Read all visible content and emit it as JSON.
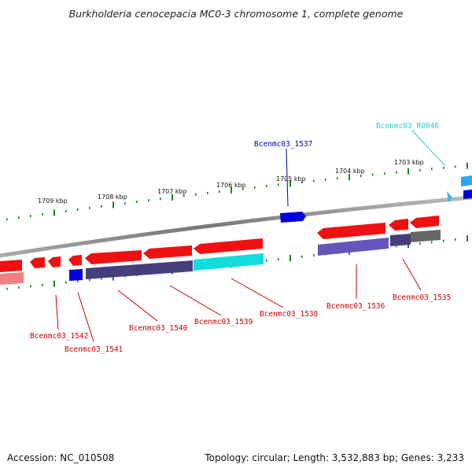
{
  "title": "Burkholderia cenocepacia MC0-3 chromosome 1, complete genome",
  "footer": {
    "accession": "Accession: NC_010508",
    "summary": "Topology: circular; Length: 3,532,883 bp; Genes: 3,233"
  },
  "colors": {
    "label_red": "#cc0000",
    "label_blue": "#0000aa",
    "label_cyan": "#33cccc",
    "gene_red": "#ee1111",
    "gene_blue": "#0000dd",
    "gene_cyan": "#11dddd",
    "gene_purple": "#6655bb",
    "gene_grey": "#666666",
    "tick_green": "#118811",
    "backbone": "#888888"
  },
  "scale_labels": [
    "1709 kbp",
    "1708 kbp",
    "1707 kbp",
    "1706 kbp",
    "1705 kbp",
    "1704 kbp",
    "1703 kbp"
  ],
  "gene_labels": [
    {
      "text": "Bcenmc03_R0046",
      "color": "cyan"
    },
    {
      "text": "Bcenmc03_1537",
      "color": "blue"
    },
    {
      "text": "Bcenmc03_1535",
      "color": "red"
    },
    {
      "text": "Bcenmc03_1536",
      "color": "red"
    },
    {
      "text": "Bcenmc03_1538",
      "color": "red"
    },
    {
      "text": "Bcenmc03_1539",
      "color": "red"
    },
    {
      "text": "Bcenmc03_1540",
      "color": "red"
    },
    {
      "text": "Bcenmc03_1542",
      "color": "red"
    },
    {
      "text": "Bcenmc03_1541",
      "color": "red"
    }
  ]
}
